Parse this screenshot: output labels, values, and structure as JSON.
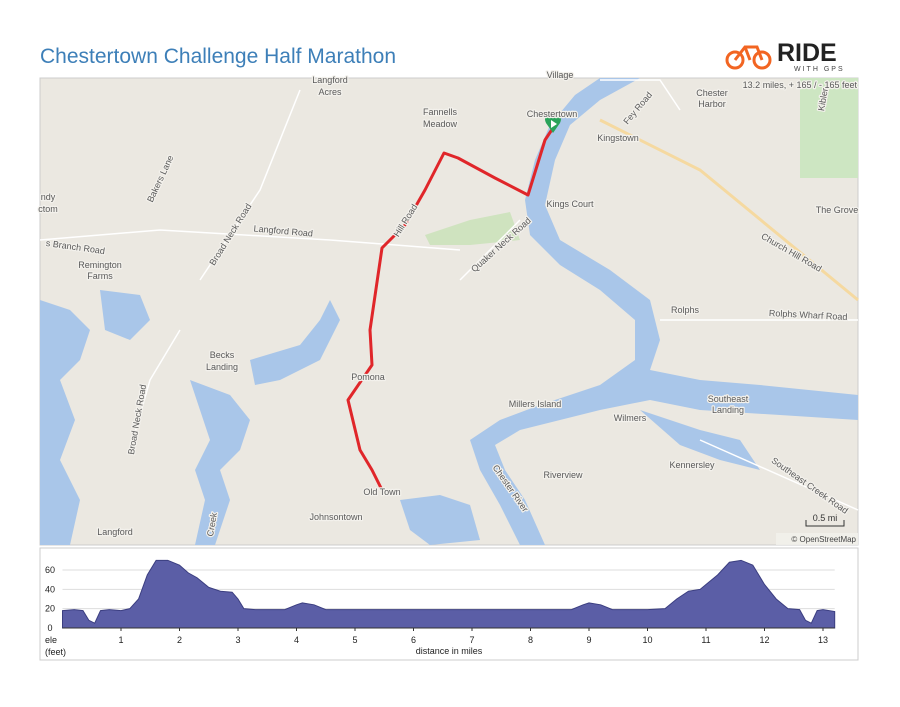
{
  "header": {
    "title": "Chestertown Challenge Half Marathon",
    "logo": "RIDE",
    "logo_sub": "WITH GPS",
    "stats": "13.2 miles, + 165 / - 165 feet"
  },
  "map": {
    "labels": [
      "Village",
      "Langford",
      "Acres",
      "Fannells",
      "Meadow",
      "Chestertown",
      "Kingstown",
      "Fey Road",
      "Chester",
      "Harbor",
      "Kibler",
      "Bakers Lane",
      "ndy",
      "ctom",
      "Broad Neck Road",
      "Langford Road",
      "Kings Court",
      "The Grove",
      "Church Hill Road",
      "Quaker Neck Road",
      "Hill Road",
      "s Branch Road",
      "Remington",
      "Farms",
      "Rolphs",
      "Rolphs Wharf Road",
      "Becks",
      "Landing",
      "Pomona",
      "Millers Island",
      "Southeast",
      "Landing",
      "Broad Neck Road",
      "Wilmers",
      "Kennersley",
      "Southeast Creek Road",
      "Chester River",
      "Riverview",
      "Old Town",
      "Johnsontown",
      "Langford",
      "Creek"
    ],
    "scale": "0.5 mi",
    "attribution": "© OpenStreetMap"
  },
  "chart_data": {
    "type": "area",
    "y_label": "ele",
    "y_unit": "(feet)",
    "x_label": "distance in miles",
    "color": "#5b5ea6",
    "x": [
      0,
      0.2,
      0.35,
      0.45,
      0.55,
      0.65,
      0.8,
      1,
      1.15,
      1.3,
      1.45,
      1.6,
      1.8,
      2,
      2.15,
      2.3,
      2.5,
      2.7,
      2.9,
      3.0,
      3.1,
      3.3,
      3.8,
      4,
      4.1,
      4.3,
      4.5,
      5,
      6,
      7,
      8,
      8.7,
      8.9,
      9.0,
      9.2,
      9.4,
      10,
      10.3,
      10.5,
      10.7,
      10.9,
      11.0,
      11.2,
      11.4,
      11.6,
      11.8,
      12,
      12.2,
      12.4,
      12.6,
      12.7,
      12.8,
      12.9,
      13.0,
      13.2
    ],
    "values": [
      18,
      19,
      18,
      8,
      5,
      18,
      19,
      18,
      20,
      30,
      55,
      70,
      70,
      65,
      57,
      52,
      42,
      38,
      37,
      30,
      20,
      19,
      19,
      24,
      26,
      24,
      19,
      19,
      19,
      19,
      19,
      19,
      24,
      26,
      24,
      19,
      19,
      20,
      30,
      38,
      40,
      45,
      55,
      68,
      70,
      65,
      45,
      30,
      20,
      19,
      8,
      5,
      18,
      19,
      17
    ],
    "xlim": [
      0,
      13.2
    ],
    "ylim": [
      0,
      72
    ],
    "xticks": [
      1,
      2,
      3,
      4,
      5,
      6,
      7,
      8,
      9,
      10,
      11,
      12,
      13
    ],
    "yticks": [
      0,
      20,
      40,
      60
    ],
    "grid": true
  }
}
